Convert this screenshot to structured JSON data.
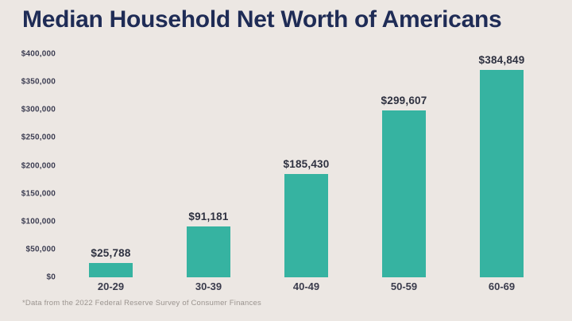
{
  "footnote": "*Data from the 2022 Federal Reserve Survey of Consumer Finances",
  "colors": {
    "background": "#ece7e3",
    "bar": "#36b3a1",
    "title_text": "#1f2c56",
    "tick_text": "#3c3d52",
    "value_label_text": "#2e3140",
    "x_label_text": "#3a3b4c",
    "footnote_text": "#9b948f"
  },
  "chart_data": {
    "type": "bar",
    "title": "Median Household Net Worth of Americans",
    "categories": [
      "20-29",
      "30-39",
      "40-49",
      "50-59",
      "60-69"
    ],
    "values": [
      25788,
      91181,
      185430,
      299607,
      384849
    ],
    "value_labels": [
      "$25,788",
      "$91,181",
      "$185,430",
      "$299,607",
      "$384,849"
    ],
    "y_ticks": [
      "$400,000",
      "$350,000",
      "$300,000",
      "$250,000",
      "$200,000",
      "$150,000",
      "$100,000",
      "$50,000",
      "$0"
    ],
    "xlabel": "",
    "ylabel": "",
    "ylim": [
      0,
      400000
    ],
    "grid": false,
    "legend": false
  }
}
